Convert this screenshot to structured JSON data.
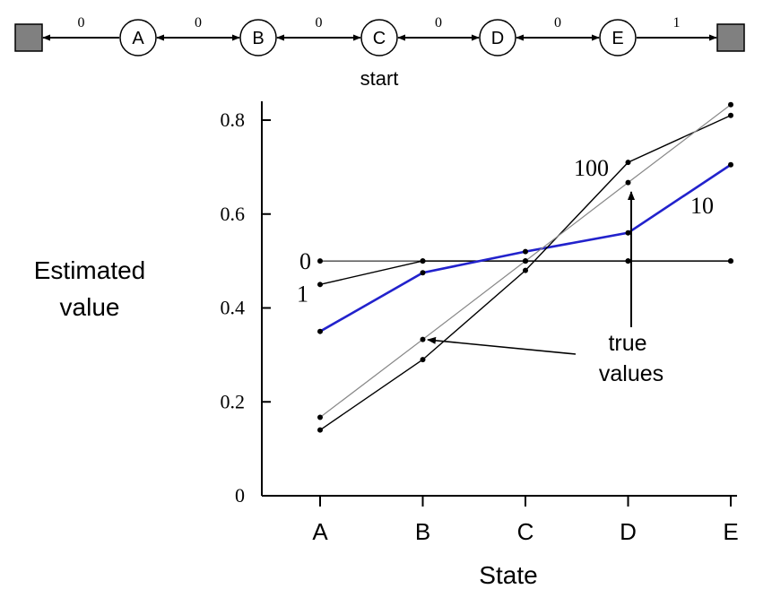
{
  "colors": {
    "ink": "#000000",
    "highlight": "#2222cc",
    "truth": "#888888",
    "terminal": "#808080"
  },
  "walk": {
    "states": [
      "A",
      "B",
      "C",
      "D",
      "E"
    ],
    "edge_rewards": [
      "0",
      "0",
      "0",
      "0",
      "0",
      "1"
    ],
    "start_label": "start",
    "start_state": "C",
    "terminal_icon": "square-icon"
  },
  "chart_data": {
    "type": "line",
    "title": "",
    "xlabel": "State",
    "ylabel": "Estimated value",
    "categories": [
      "A",
      "B",
      "C",
      "D",
      "E"
    ],
    "ylim": [
      0,
      0.833
    ],
    "yticks": [
      "0",
      "0.2",
      "0.4",
      "0.6",
      "0.8"
    ],
    "ytick_values": [
      0,
      0.2,
      0.4,
      0.6,
      0.8
    ],
    "series": [
      {
        "name": "0",
        "label": "0",
        "style": "thin",
        "values": [
          0.5,
          0.5,
          0.5,
          0.5,
          0.5
        ]
      },
      {
        "name": "1",
        "label": "1",
        "style": "black",
        "values": [
          0.45,
          0.5,
          0.5,
          0.5,
          0.5
        ]
      },
      {
        "name": "10",
        "label": "10",
        "style": "blue",
        "values": [
          0.35,
          0.475,
          0.52,
          0.56,
          0.705
        ]
      },
      {
        "name": "100",
        "label": "100",
        "style": "black",
        "values": [
          0.14,
          0.29,
          0.48,
          0.71,
          0.81
        ]
      },
      {
        "name": "true values",
        "label": "",
        "style": "truth",
        "values": [
          0.167,
          0.333,
          0.5,
          0.667,
          0.833
        ]
      }
    ],
    "annotations": {
      "true_values_label": [
        "true",
        "values"
      ]
    }
  }
}
